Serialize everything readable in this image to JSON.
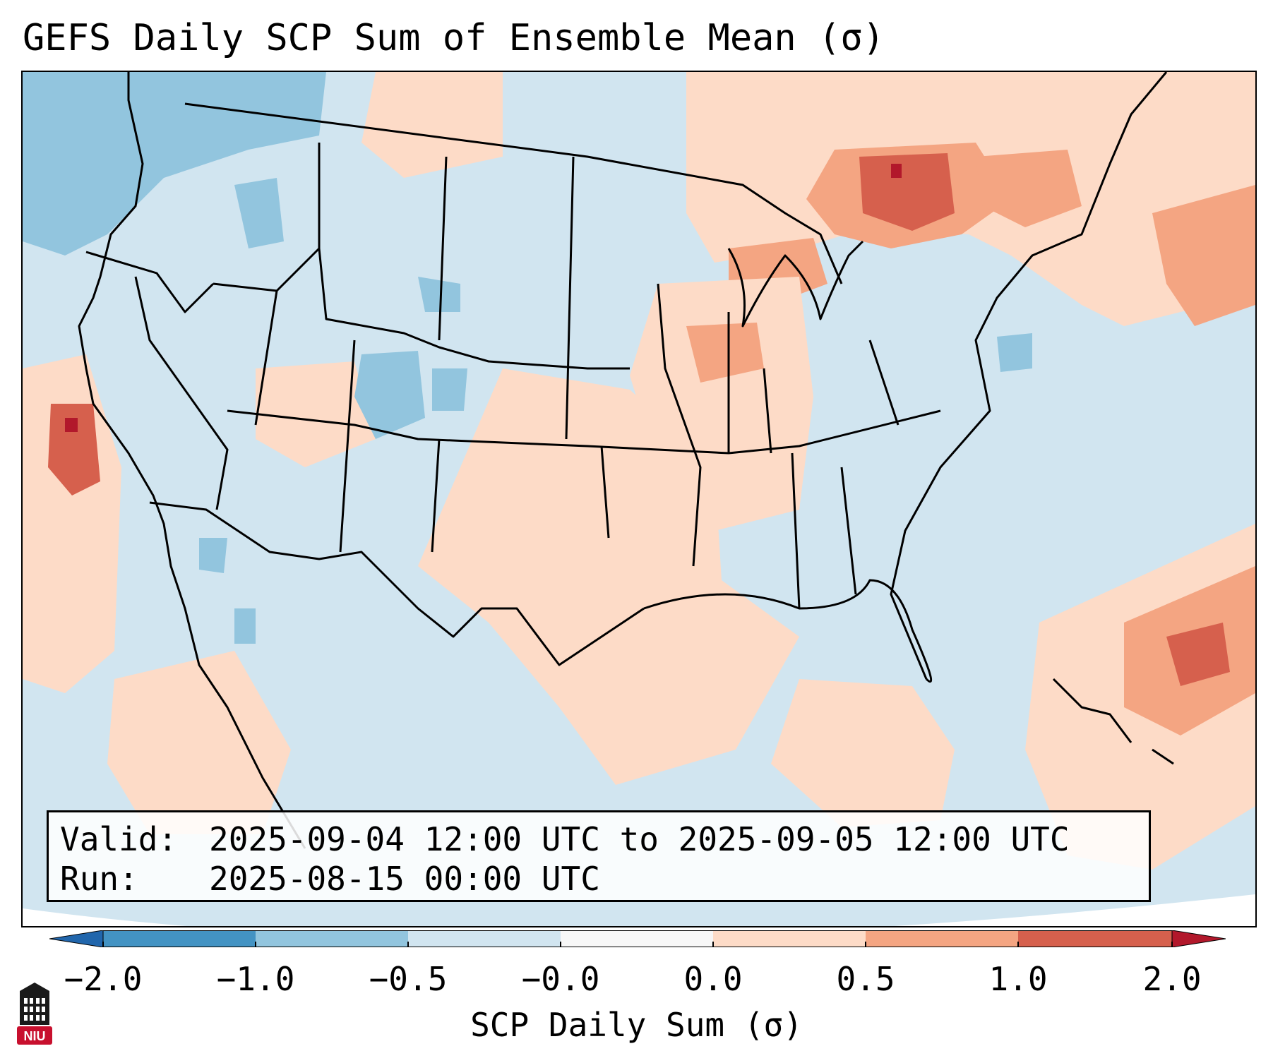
{
  "title": "GEFS Daily SCP Sum of Ensemble Mean (σ)",
  "info": {
    "valid_label": "Valid:",
    "valid_value": "2025-09-04 12:00 UTC to 2025-09-05 12:00 UTC",
    "run_label": "Run:",
    "run_value": "2025-08-15 00:00 UTC"
  },
  "colorbar": {
    "label": "SCP Daily Sum (σ)",
    "ticks": [
      "−2.0",
      "−1.0",
      "−0.5",
      "−0.0",
      "0.0",
      "0.5",
      "1.0",
      "2.0"
    ],
    "colors": [
      "#4393c3",
      "#92c5de",
      "#d1e5f0",
      "#f7f7f7",
      "#fddbc7",
      "#f4a582",
      "#d6604d"
    ],
    "extend_low_color": "#2166ac",
    "extend_high_color": "#b2182b"
  },
  "map": {
    "background_color": "#d1e5f0",
    "region": "Contiguous United States, northern Mexico, Gulf of Mexico"
  },
  "logo": {
    "text": "NIU",
    "color": "#c8102e"
  }
}
